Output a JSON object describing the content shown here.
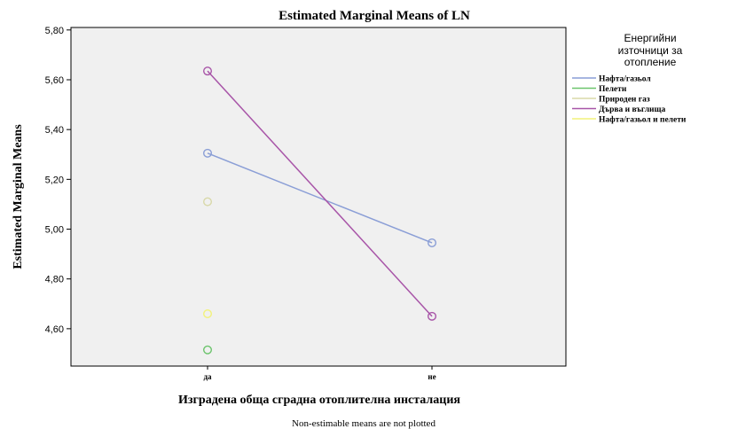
{
  "chart_data": {
    "type": "line",
    "title": "Estimated Marginal Means of LN",
    "xlabel": "Изградена обща сградна отоплителна инсталация",
    "ylabel": "Estimated Marginal Means",
    "categories": [
      "да",
      "не"
    ],
    "ylim": [
      4.45,
      5.81
    ],
    "yticks": [
      4.6,
      4.8,
      5.0,
      5.2,
      5.4,
      5.6,
      5.8
    ],
    "ytick_labels": [
      "4,60",
      "4,80",
      "5,00",
      "5,20",
      "5,40",
      "5,60",
      "5,80"
    ],
    "grid": false,
    "legend_position": "right",
    "legend_title": [
      "Енергийни",
      "източници за",
      "отопление"
    ],
    "series": [
      {
        "name": "Нафта/газьол",
        "color": "#8a9ed6",
        "values": [
          5.305,
          4.945
        ]
      },
      {
        "name": "Пелети",
        "color": "#6cc46c",
        "values": [
          4.515,
          null
        ]
      },
      {
        "name": "Природен газ",
        "color": "#d8d8a8",
        "values": [
          5.11,
          null
        ]
      },
      {
        "name": "Дърва и въглища",
        "color": "#a855a8",
        "values": [
          5.635,
          4.65
        ]
      },
      {
        "name": "Нафта/газьол и пелети",
        "color": "#f2f27a",
        "values": [
          4.66,
          null
        ]
      }
    ],
    "footnote": "Non-estimable means are not plotted"
  }
}
